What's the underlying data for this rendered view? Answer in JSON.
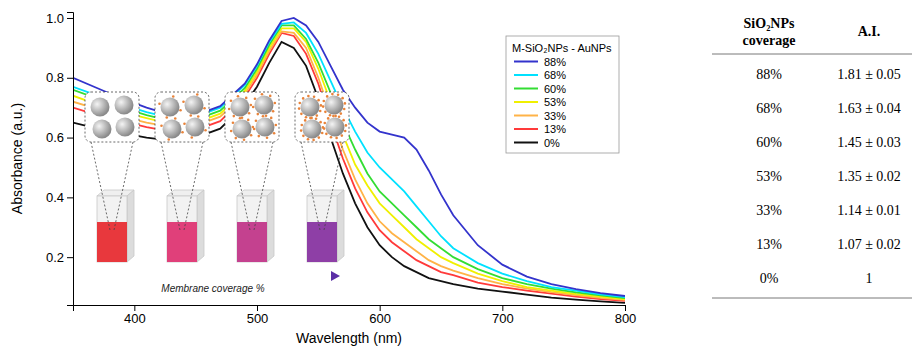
{
  "chart_data": {
    "type": "line",
    "x_label": "Wavelength (nm)",
    "y_label": "Absorbance (a.u.)",
    "legend_title": "M-SiO₂NPs - AuNPs",
    "annotation": "Membrane coverage %",
    "x": [
      350,
      370,
      390,
      410,
      430,
      450,
      470,
      490,
      500,
      510,
      520,
      530,
      540,
      550,
      560,
      570,
      580,
      590,
      600,
      610,
      620,
      630,
      640,
      650,
      660,
      680,
      700,
      720,
      740,
      760,
      780,
      800
    ],
    "xlim": [
      350,
      800
    ],
    "xticks": [
      400,
      500,
      600,
      700,
      800
    ],
    "ylim": [
      0.04,
      1.02
    ],
    "yticks": [
      0.2,
      0.4,
      0.6,
      0.8,
      {
        "value": 1,
        "label": "1.0"
      }
    ],
    "grid": false,
    "legend": "upper right",
    "series": [
      {
        "name": "88%",
        "color": "#3333cc",
        "values": [
          0.8,
          0.765,
          0.73,
          0.7,
          0.675,
          0.675,
          0.705,
          0.78,
          0.845,
          0.925,
          0.99,
          1.0,
          0.975,
          0.92,
          0.84,
          0.76,
          0.7,
          0.65,
          0.62,
          0.61,
          0.6,
          0.56,
          0.49,
          0.41,
          0.34,
          0.24,
          0.175,
          0.135,
          0.11,
          0.093,
          0.08,
          0.07
        ]
      },
      {
        "name": "68%",
        "color": "#00e1ff",
        "values": [
          0.77,
          0.74,
          0.71,
          0.685,
          0.665,
          0.67,
          0.7,
          0.775,
          0.84,
          0.92,
          0.98,
          0.985,
          0.95,
          0.88,
          0.79,
          0.7,
          0.62,
          0.55,
          0.5,
          0.46,
          0.42,
          0.37,
          0.32,
          0.27,
          0.23,
          0.18,
          0.145,
          0.12,
          0.1,
          0.088,
          0.076,
          0.066
        ]
      },
      {
        "name": "60%",
        "color": "#33dd33",
        "values": [
          0.76,
          0.73,
          0.7,
          0.675,
          0.655,
          0.66,
          0.69,
          0.765,
          0.83,
          0.91,
          0.975,
          0.975,
          0.93,
          0.85,
          0.75,
          0.65,
          0.56,
          0.48,
          0.42,
          0.38,
          0.34,
          0.3,
          0.26,
          0.23,
          0.2,
          0.16,
          0.13,
          0.11,
          0.095,
          0.082,
          0.072,
          0.063
        ]
      },
      {
        "name": "53%",
        "color": "#f0f000",
        "values": [
          0.74,
          0.71,
          0.685,
          0.665,
          0.645,
          0.65,
          0.68,
          0.755,
          0.82,
          0.9,
          0.965,
          0.965,
          0.92,
          0.83,
          0.72,
          0.61,
          0.51,
          0.44,
          0.38,
          0.34,
          0.3,
          0.26,
          0.23,
          0.2,
          0.18,
          0.145,
          0.12,
          0.1,
          0.088,
          0.077,
          0.068,
          0.06
        ]
      },
      {
        "name": "33%",
        "color": "#ffb347",
        "values": [
          0.72,
          0.695,
          0.67,
          0.65,
          0.635,
          0.64,
          0.67,
          0.745,
          0.81,
          0.89,
          0.955,
          0.95,
          0.9,
          0.8,
          0.68,
          0.56,
          0.46,
          0.38,
          0.32,
          0.28,
          0.25,
          0.22,
          0.19,
          0.17,
          0.155,
          0.13,
          0.11,
          0.095,
          0.083,
          0.073,
          0.064,
          0.057
        ]
      },
      {
        "name": "13%",
        "color": "#ff3a3a",
        "values": [
          0.7,
          0.675,
          0.655,
          0.635,
          0.62,
          0.625,
          0.655,
          0.735,
          0.8,
          0.88,
          0.95,
          0.94,
          0.88,
          0.78,
          0.65,
          0.53,
          0.43,
          0.35,
          0.29,
          0.25,
          0.22,
          0.19,
          0.17,
          0.15,
          0.14,
          0.115,
          0.1,
          0.088,
          0.078,
          0.068,
          0.06,
          0.054
        ]
      },
      {
        "name": "0%",
        "color": "#111111",
        "values": [
          0.65,
          0.63,
          0.615,
          0.6,
          0.59,
          0.6,
          0.63,
          0.71,
          0.77,
          0.85,
          0.92,
          0.9,
          0.84,
          0.73,
          0.6,
          0.48,
          0.38,
          0.3,
          0.24,
          0.2,
          0.17,
          0.15,
          0.13,
          0.12,
          0.11,
          0.095,
          0.085,
          0.075,
          0.065,
          0.058,
          0.052,
          0.047
        ]
      }
    ]
  },
  "table": {
    "header": [
      "SiO₂NPs coverage",
      "A.I."
    ],
    "rows": [
      [
        "88%",
        "1.81 ± 0.05"
      ],
      [
        "68%",
        "1.63 ± 0.04"
      ],
      [
        "60%",
        "1.45 ± 0.03"
      ],
      [
        "53%",
        "1.35 ± 0.02"
      ],
      [
        "33%",
        "1.14 ± 0.01"
      ],
      [
        "13%",
        "1.07 ± 0.02"
      ],
      [
        "0%",
        "1"
      ]
    ]
  }
}
